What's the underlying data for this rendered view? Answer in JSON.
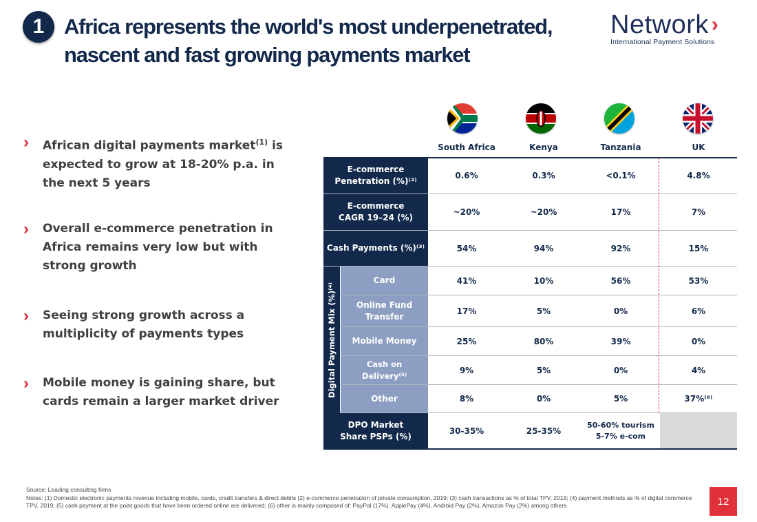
{
  "header": {
    "number": "1",
    "title_line1": "Africa represents the world's most underpenetrated,",
    "title_line2": "nascent and fast growing payments market",
    "logo_word": "Network",
    "logo_tagline": "International Payment Solutions"
  },
  "bullets": [
    {
      "text_a": "African digital payments market",
      "sup": "(1)",
      "text_b": " is expected to grow at 18-20% p.a. in the next 5 years"
    },
    {
      "text_a": "Overall e-commerce penetration in Africa remains very low but with strong growth",
      "sup": "",
      "text_b": ""
    },
    {
      "text_a": "Seeing strong growth across a multiplicity of payments types",
      "sup": "",
      "text_b": ""
    },
    {
      "text_a": "Mobile money is gaining share, but cards remain a larger market driver",
      "sup": "",
      "text_b": ""
    }
  ],
  "columns": [
    {
      "name": "South Africa",
      "flag": "south-africa-flag-icon"
    },
    {
      "name": "Kenya",
      "flag": "kenya-flag-icon"
    },
    {
      "name": "Tanzania",
      "flag": "tanzania-flag-icon"
    },
    {
      "name": "UK",
      "flag": "uk-flag-icon"
    }
  ],
  "side_label": "Digital Payment Mix (%)⁽⁴⁾",
  "rows": [
    {
      "label_a": "E-commerce",
      "label_b": "Penetration (%)⁽²⁾",
      "values": [
        "0.6%",
        "0.3%",
        "<0.1%",
        "4.8%"
      ]
    },
    {
      "label_a": "E-commerce",
      "label_b": "CAGR 19–24 (%)",
      "values": [
        "~20%",
        "~20%",
        "17%",
        "7%"
      ]
    },
    {
      "label_a": "Cash Payments (%)⁽³⁾",
      "label_b": "",
      "values": [
        "54%",
        "94%",
        "92%",
        "15%"
      ]
    },
    {
      "label_a": "Card",
      "label_b": "",
      "values": [
        "41%",
        "10%",
        "56%",
        "53%"
      ]
    },
    {
      "label_a": "Online Fund",
      "label_b": "Transfer",
      "values": [
        "17%",
        "5%",
        "0%",
        "6%"
      ]
    },
    {
      "label_a": "Mobile Money",
      "label_b": "",
      "values": [
        "25%",
        "80%",
        "39%",
        "0%"
      ]
    },
    {
      "label_a": "Cash on Delivery⁽⁵⁾",
      "label_b": "",
      "values": [
        "9%",
        "5%",
        "0%",
        "4%"
      ]
    },
    {
      "label_a": "Other",
      "label_b": "",
      "values": [
        "8%",
        "0%",
        "5%",
        "37%⁽⁶⁾"
      ]
    },
    {
      "label_a": "DPO Market",
      "label_b": "Share PSPs (%)",
      "values": [
        "30-35%",
        "25-35%",
        "50-60% tourism\n5-7% e-com",
        ""
      ]
    }
  ],
  "footer": {
    "source": "Source: Leading consulting firms",
    "notes": "Notes: (1) Domestic electronic payments revenue including mobile, cards, credit transfers & direct debits (2) e-commerce penetration of private consumption, 2019; (3) cash transactions as % of total TPV, 2019; (4) payment methods as % of digital commerce TPV, 2019; (5) cash payment at the point goods that have been ordered online are delivered; (6) other is mainly composed of: PayPal (17%), ApplePay (4%), Android Pay (2%), Amazon Pay (2%) among others",
    "page": "12"
  }
}
